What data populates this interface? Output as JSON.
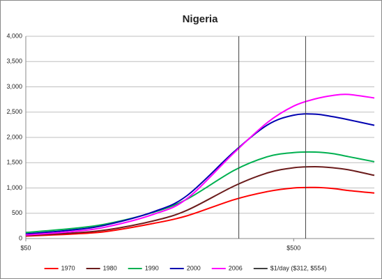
{
  "chart_data": {
    "type": "line",
    "title": "Nigeria",
    "xscale": "log",
    "xlim": [
      50,
      1000
    ],
    "xticks": [
      {
        "value": 50,
        "label": "$50"
      },
      {
        "value": 500,
        "label": "$500"
      }
    ],
    "ylim": [
      0,
      4000
    ],
    "yticks": [
      0,
      500,
      {
        "value": 1000,
        "label": "1,000"
      },
      {
        "value": 1500,
        "label": "1,500"
      },
      {
        "value": 2000,
        "label": "2,000"
      },
      {
        "value": 2500,
        "label": "2,500"
      },
      {
        "value": 3000,
        "label": "3,000"
      },
      {
        "value": 3500,
        "label": "3,500"
      },
      {
        "value": 4000,
        "label": "4,000"
      }
    ],
    "grid": true,
    "legend": "bottom",
    "x": [
      50,
      75,
      100,
      150,
      200,
      300,
      400,
      500,
      600,
      700,
      800,
      1000
    ],
    "series": [
      {
        "name": "1970",
        "color": "#ff0000",
        "values": [
          50,
          90,
          140,
          300,
          450,
          770,
          930,
          1000,
          1010,
          990,
          950,
          900
        ]
      },
      {
        "name": "1980",
        "color": "#6b1c1c",
        "values": [
          60,
          110,
          170,
          350,
          560,
          1040,
          1300,
          1400,
          1420,
          1400,
          1360,
          1250
        ]
      },
      {
        "name": "1990",
        "color": "#00b050",
        "values": [
          120,
          200,
          290,
          520,
          780,
          1350,
          1620,
          1700,
          1710,
          1680,
          1620,
          1520
        ]
      },
      {
        "name": "2000",
        "color": "#0000b0",
        "values": [
          90,
          170,
          270,
          530,
          850,
          1720,
          2250,
          2440,
          2460,
          2410,
          2350,
          2240
        ]
      },
      {
        "name": "2006",
        "color": "#ff00ff",
        "values": [
          70,
          140,
          230,
          480,
          790,
          1700,
          2300,
          2620,
          2760,
          2830,
          2850,
          2780
        ]
      },
      {
        "name": "$1/day ($312, $554)",
        "color": "#404040",
        "x": [
          312,
          312,
          null,
          554,
          554
        ],
        "values": [
          0,
          4000,
          null,
          0,
          4000
        ]
      }
    ]
  }
}
